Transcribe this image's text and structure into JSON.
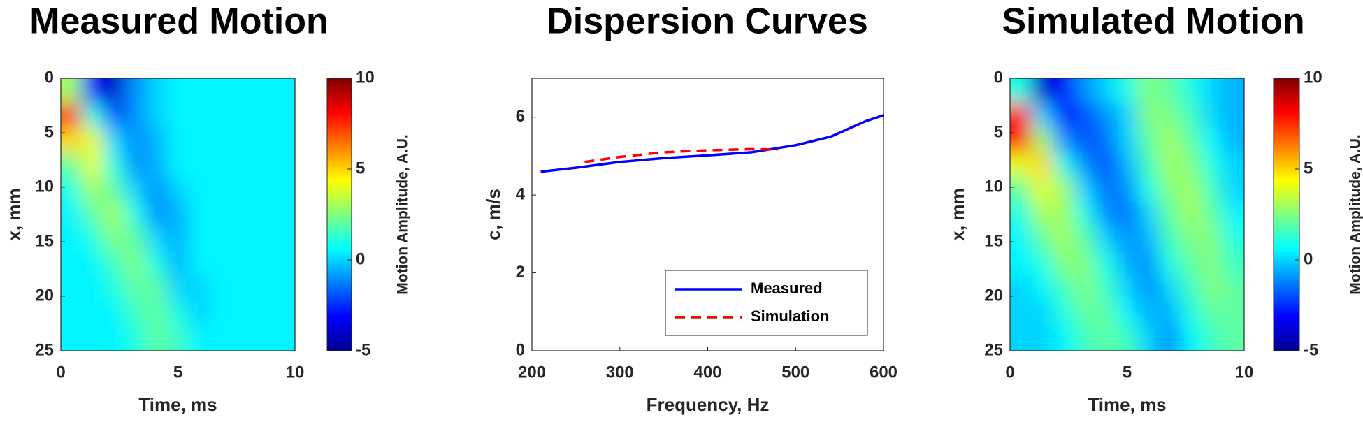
{
  "chart_data": [
    {
      "type": "heatmap",
      "title": "Measured Motion",
      "xlabel": "Time, ms",
      "ylabel": "x, mm",
      "xlim": [
        0,
        10
      ],
      "xticks": [
        0,
        5,
        10
      ],
      "ylim": [
        0,
        25
      ],
      "yticks": [
        0,
        5,
        10,
        15,
        20,
        25
      ],
      "y_reversed": true,
      "colormap": "jet",
      "clim": [
        -5,
        10
      ],
      "cticks": [
        -5,
        0,
        5,
        10
      ],
      "colorbar_label": "Motion Amplitude, A.U.",
      "z": [
        [
          3,
          -3,
          -4,
          -1,
          0,
          0.5,
          0.5,
          0.5,
          0.5,
          0.5,
          0.5
        ],
        [
          8,
          1,
          -2,
          -1,
          0,
          0.5,
          0.5,
          0.5,
          0.5,
          0.5,
          0.5
        ],
        [
          5,
          4,
          0,
          -1,
          -0.5,
          0.5,
          0.5,
          0.5,
          0.5,
          0.5,
          0.5
        ],
        [
          2,
          4,
          1,
          -1,
          -0.5,
          0.5,
          0.5,
          0.5,
          0.5,
          0.5,
          0.5
        ],
        [
          1,
          3,
          2,
          0,
          -1,
          0,
          0.5,
          0.5,
          0.5,
          0.5,
          0.5
        ],
        [
          0.5,
          2,
          3,
          1,
          -1,
          -0.5,
          0.5,
          0.5,
          0.5,
          0.5,
          0.5
        ],
        [
          0.5,
          1,
          2.5,
          2,
          0,
          -0.5,
          0.5,
          0.5,
          0.5,
          0.5,
          0.5
        ],
        [
          0.5,
          0.5,
          1.5,
          2.5,
          1,
          -0.5,
          0.5,
          0.5,
          0.5,
          0.5,
          0.5
        ],
        [
          0.5,
          0.5,
          1,
          2,
          2,
          0,
          0,
          0.5,
          0.5,
          0.5,
          0.5
        ],
        [
          0.5,
          0.5,
          0.5,
          1.5,
          2,
          1,
          0,
          0.5,
          0.5,
          0.5,
          0.5
        ],
        [
          0.5,
          0.5,
          0.5,
          1,
          2,
          1.5,
          0.5,
          0.5,
          0.5,
          0.5,
          0.5
        ]
      ]
    },
    {
      "type": "line",
      "title": "Dispersion Curves",
      "xlabel": "Frequency, Hz",
      "ylabel": "c, m/s",
      "xlim": [
        200,
        600
      ],
      "xticks": [
        200,
        300,
        400,
        500,
        600
      ],
      "ylim": [
        0,
        7
      ],
      "yticks": [
        0,
        2,
        4,
        6
      ],
      "legend": "lower right",
      "series": [
        {
          "name": "Measured",
          "color": "#0000ff",
          "dash": "solid",
          "x": [
            210,
            250,
            300,
            350,
            400,
            450,
            500,
            540,
            580,
            600
          ],
          "values": [
            4.6,
            4.7,
            4.85,
            4.95,
            5.02,
            5.1,
            5.28,
            5.5,
            5.9,
            6.05
          ]
        },
        {
          "name": "Simulation",
          "color": "#ff0000",
          "dash": "dashed",
          "x": [
            260,
            300,
            350,
            400,
            450,
            480
          ],
          "values": [
            4.85,
            4.98,
            5.1,
            5.15,
            5.18,
            5.17
          ]
        }
      ]
    },
    {
      "type": "heatmap",
      "title": "Simulated Motion",
      "xlabel": "Time, ms",
      "ylabel": "x, mm",
      "xlim": [
        0,
        10
      ],
      "xticks": [
        0,
        5,
        10
      ],
      "ylim": [
        0,
        25
      ],
      "yticks": [
        0,
        5,
        10,
        15,
        20,
        25
      ],
      "y_reversed": true,
      "colormap": "jet",
      "clim": [
        -5,
        10
      ],
      "cticks": [
        -5,
        0,
        5,
        10
      ],
      "colorbar_label": "Motion Amplitude, A.U.",
      "z": [
        [
          1,
          -4,
          -3,
          -1,
          0,
          1,
          2.5,
          2,
          1,
          0,
          -0.5
        ],
        [
          8,
          0,
          -3,
          -2,
          -1,
          0,
          2.5,
          2.5,
          1.5,
          0,
          -0.5
        ],
        [
          8,
          3,
          -1,
          -2,
          -1.5,
          0,
          2,
          3,
          2,
          0.5,
          -0.5
        ],
        [
          4,
          5,
          1,
          -1,
          -2,
          -0.5,
          1.5,
          3,
          2.5,
          1,
          0
        ],
        [
          2,
          4,
          3,
          0,
          -1.5,
          -1,
          1,
          2.5,
          3,
          1.5,
          0
        ],
        [
          1,
          3,
          3,
          1,
          -1,
          -1.5,
          0,
          2,
          3,
          2,
          0.5
        ],
        [
          0.5,
          2,
          3,
          2,
          0,
          -1,
          -0.5,
          1.5,
          2.5,
          2.5,
          1
        ],
        [
          0.5,
          1,
          2.5,
          2.5,
          1,
          -0.5,
          -1,
          1,
          2,
          2.5,
          1.5
        ],
        [
          0,
          0.5,
          1.5,
          2.5,
          1.5,
          0,
          -1,
          0,
          1.5,
          2.5,
          2
        ],
        [
          0,
          0,
          1,
          2,
          2,
          0.5,
          -0.5,
          -0.5,
          1,
          2,
          2
        ],
        [
          0,
          0,
          0.5,
          1.5,
          2,
          1.5,
          0,
          -1,
          0.5,
          1.5,
          2
        ]
      ]
    }
  ]
}
